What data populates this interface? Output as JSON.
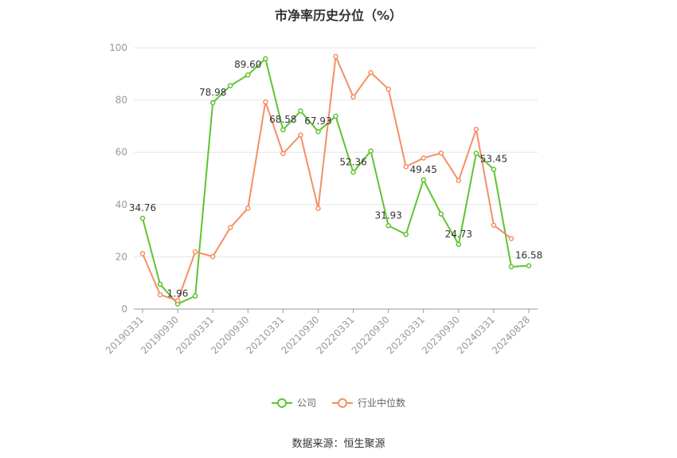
{
  "title": "市净率历史分位（%）",
  "source": "数据来源：恒生聚源",
  "colors": {
    "company": "#5ec430",
    "industry": "#f58f63",
    "grid": "#e6e6e6",
    "axis": "#999999"
  },
  "chart_data": {
    "type": "line",
    "title": "市净率历史分位（%）",
    "ylim": [
      0,
      100
    ],
    "yticks": [
      0,
      20,
      40,
      60,
      80,
      100
    ],
    "grid": true,
    "legend_position": "bottom",
    "x": [
      "20190331",
      "20190630",
      "20190930",
      "20191231",
      "20200331",
      "20200630",
      "20200930",
      "20201231",
      "20210331",
      "20210630",
      "20210930",
      "20211231",
      "20220331",
      "20220630",
      "20220930",
      "20221231",
      "20230331",
      "20230630",
      "20230930",
      "20231231",
      "20240331",
      "20240630",
      "20240828"
    ],
    "x_tick_labels": [
      "20190331",
      "20190930",
      "20200331",
      "20200930",
      "20210331",
      "20210930",
      "20220331",
      "20220930",
      "20230331",
      "20230930",
      "20240331",
      "20240828"
    ],
    "series": [
      {
        "name": "公司",
        "values": [
          34.76,
          9.5,
          1.96,
          5.0,
          78.98,
          85.5,
          89.6,
          95.8,
          68.58,
          75.8,
          67.93,
          73.8,
          52.36,
          60.5,
          31.93,
          28.6,
          49.45,
          36.4,
          24.73,
          59.6,
          53.45,
          16.2,
          16.58
        ],
        "labels": {
          "0": "34.76",
          "2": "1.96",
          "4": "78.98",
          "6": "89.60",
          "8": "68.58",
          "10": "67.93",
          "12": "52.36",
          "14": "31.93",
          "16": "49.45",
          "18": "24.73",
          "20": "53.45",
          "22": "16.58"
        }
      },
      {
        "name": "行业中位数",
        "values": [
          21.2,
          5.5,
          3.2,
          21.9,
          20.1,
          31.2,
          38.6,
          79.3,
          59.5,
          66.6,
          38.5,
          96.7,
          81.2,
          90.5,
          84.2,
          54.5,
          57.8,
          59.7,
          49.2,
          68.8,
          32.1,
          27.0,
          null
        ],
        "labels": {}
      }
    ]
  }
}
